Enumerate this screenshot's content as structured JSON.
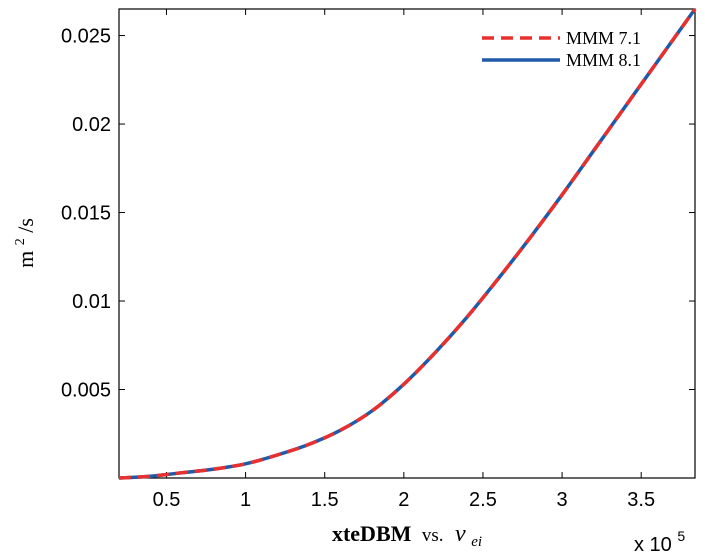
{
  "chart_data": {
    "type": "line",
    "xlabel_main": "xteDBM",
    "xlabel_vs": "vs.",
    "xlabel_symbol": "ν",
    "xlabel_subscript": "ei",
    "ylabel_unit": "m",
    "ylabel_exp": "2",
    "ylabel_rest": "/s",
    "x_multiplier_base": "x 10",
    "x_multiplier_exp": "5",
    "xlim": [
      0.2,
      3.84
    ],
    "ylim": [
      0,
      0.0265
    ],
    "xticks": [
      0.5,
      1,
      1.5,
      2,
      2.5,
      3,
      3.5
    ],
    "xtick_labels": [
      "0.5",
      "1",
      "1.5",
      "2",
      "2.5",
      "3",
      "3.5"
    ],
    "yticks": [
      0.005,
      0.01,
      0.015,
      0.02,
      0.025
    ],
    "ytick_labels": [
      "0.005",
      "0.01",
      "0.015",
      "0.02",
      "0.025"
    ],
    "grid": false,
    "legend_position": "top-right",
    "x": [
      0.2,
      0.4,
      0.6,
      0.8,
      1.0,
      1.2,
      1.4,
      1.6,
      1.8,
      2.0,
      2.2,
      2.4,
      2.6,
      2.8,
      3.0,
      3.2,
      3.4,
      3.6,
      3.84
    ],
    "series": [
      {
        "name": "MMM 7.1",
        "color": "#e8302f",
        "style": "dashed",
        "values": [
          0.0,
          0.0001,
          0.0003,
          0.0005,
          0.0008,
          0.0013,
          0.0019,
          0.0027,
          0.0038,
          0.0053,
          0.0071,
          0.0091,
          0.0113,
          0.0136,
          0.016,
          0.0185,
          0.021,
          0.0235,
          0.0265
        ]
      },
      {
        "name": "MMM 8.1",
        "color": "#1f5aa8",
        "style": "solid",
        "values": [
          0.0,
          0.0001,
          0.0003,
          0.0005,
          0.0008,
          0.0013,
          0.0019,
          0.0027,
          0.0038,
          0.0053,
          0.0071,
          0.0091,
          0.0113,
          0.0136,
          0.016,
          0.0185,
          0.021,
          0.0235,
          0.0265
        ]
      }
    ]
  }
}
